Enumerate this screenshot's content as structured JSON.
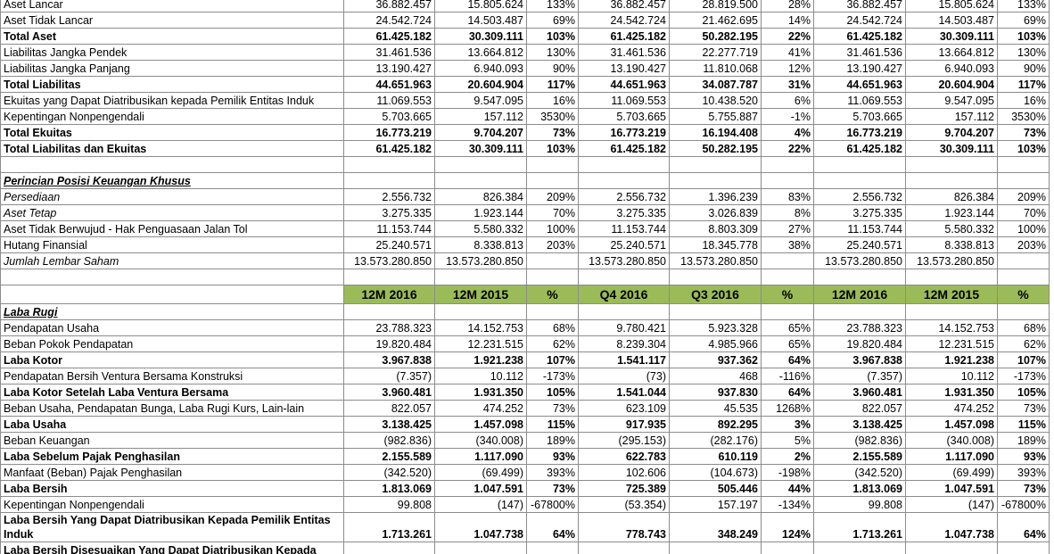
{
  "rows": [
    {
      "label": "Aset Lancar",
      "cells": [
        "36.882.457",
        "15.805.624",
        "133%",
        "36.882.457",
        "28.819.500",
        "28%",
        "36.882.457",
        "15.805.624",
        "133%"
      ]
    },
    {
      "label": "Aset Tidak Lancar",
      "cells": [
        "24.542.724",
        "14.503.487",
        "69%",
        "24.542.724",
        "21.462.695",
        "14%",
        "24.542.724",
        "14.503.487",
        "69%"
      ]
    },
    {
      "label": "Total Aset",
      "style": "bold",
      "cells": [
        "61.425.182",
        "30.309.111",
        "103%",
        "61.425.182",
        "50.282.195",
        "22%",
        "61.425.182",
        "30.309.111",
        "103%"
      ]
    },
    {
      "label": "Liabilitas Jangka Pendek",
      "cells": [
        "31.461.536",
        "13.664.812",
        "130%",
        "31.461.536",
        "22.277.719",
        "41%",
        "31.461.536",
        "13.664.812",
        "130%"
      ]
    },
    {
      "label": "Liabilitas Jangka Panjang",
      "cells": [
        "13.190.427",
        "6.940.093",
        "90%",
        "13.190.427",
        "11.810.068",
        "12%",
        "13.190.427",
        "6.940.093",
        "90%"
      ]
    },
    {
      "label": "Total Liabilitas",
      "style": "bold",
      "cells": [
        "44.651.963",
        "20.604.904",
        "117%",
        "44.651.963",
        "34.087.787",
        "31%",
        "44.651.963",
        "20.604.904",
        "117%"
      ]
    },
    {
      "label": "Ekuitas yang Dapat Diatribusikan kepada Pemilik Entitas Induk",
      "cells": [
        "11.069.553",
        "9.547.095",
        "16%",
        "11.069.553",
        "10.438.520",
        "6%",
        "11.069.553",
        "9.547.095",
        "16%"
      ]
    },
    {
      "label": "Kepentingan Nonpengendali",
      "cells": [
        "5.703.665",
        "157.112",
        "3530%",
        "5.703.665",
        "5.755.887",
        "-1%",
        "5.703.665",
        "157.112",
        "3530%"
      ]
    },
    {
      "label": "Total Ekuitas",
      "style": "bold",
      "cells": [
        "16.773.219",
        "9.704.207",
        "73%",
        "16.773.219",
        "16.194.408",
        "4%",
        "16.773.219",
        "9.704.207",
        "73%"
      ]
    },
    {
      "label": "Total Liabilitas dan Ekuitas",
      "style": "bold",
      "cells": [
        "61.425.182",
        "30.309.111",
        "103%",
        "61.425.182",
        "50.282.195",
        "22%",
        "61.425.182",
        "30.309.111",
        "103%"
      ]
    },
    {},
    {
      "label": "Perincian Posisi Keuangan Khusus",
      "style": "section"
    },
    {
      "label": "Persediaan",
      "style": "italic",
      "cells": [
        "2.556.732",
        "826.384",
        "209%",
        "2.556.732",
        "1.396.239",
        "83%",
        "2.556.732",
        "826.384",
        "209%"
      ]
    },
    {
      "label": "Aset Tetap",
      "style": "italic",
      "cells": [
        "3.275.335",
        "1.923.144",
        "70%",
        "3.275.335",
        "3.026.839",
        "8%",
        "3.275.335",
        "1.923.144",
        "70%"
      ]
    },
    {
      "label": "Aset Tidak Berwujud - Hak Penguasaan Jalan Tol",
      "cells": [
        "11.153.744",
        "5.580.332",
        "100%",
        "11.153.744",
        "8.803.309",
        "27%",
        "11.153.744",
        "5.580.332",
        "100%"
      ]
    },
    {
      "label": "Hutang Finansial",
      "cells": [
        "25.240.571",
        "8.338.813",
        "203%",
        "25.240.571",
        "18.345.778",
        "38%",
        "25.240.571",
        "8.338.813",
        "203%"
      ]
    },
    {
      "label": "Jumlah Lembar Saham",
      "style": "italic",
      "cells": [
        "13.573.280.850",
        "13.573.280.850",
        null,
        "13.573.280.850",
        "13.573.280.850",
        null,
        "13.573.280.850",
        "13.573.280.850",
        null
      ]
    },
    {},
    {
      "style": "header",
      "cells": [
        "12M 2016",
        "12M 2015",
        "%",
        "Q4 2016",
        "Q3 2016",
        "%",
        "12M 2016",
        "12M 2015",
        "%"
      ]
    },
    {
      "label": "Laba Rugi",
      "style": "section"
    },
    {
      "label": "Pendapatan Usaha",
      "cells": [
        "23.788.323",
        "14.152.753",
        "68%",
        "9.780.421",
        "5.923.328",
        "65%",
        "23.788.323",
        "14.152.753",
        "68%"
      ]
    },
    {
      "label": "Beban Pokok Pendapatan",
      "cells": [
        "19.820.484",
        "12.231.515",
        "62%",
        "8.239.304",
        "4.985.966",
        "65%",
        "19.820.484",
        "12.231.515",
        "62%"
      ]
    },
    {
      "label": "Laba Kotor",
      "style": "bold",
      "cells": [
        "3.967.838",
        "1.921.238",
        "107%",
        "1.541.117",
        "937.362",
        "64%",
        "3.967.838",
        "1.921.238",
        "107%"
      ]
    },
    {
      "label": "Pendapatan Bersih Ventura Bersama Konstruksi",
      "cells": [
        "(7.357)",
        "10.112",
        "-173%",
        "(73)",
        "468",
        "-116%",
        "(7.357)",
        "10.112",
        "-173%"
      ]
    },
    {
      "label": "Laba Kotor Setelah Laba Ventura Bersama",
      "style": "bold",
      "cells": [
        "3.960.481",
        "1.931.350",
        "105%",
        "1.541.044",
        "937.830",
        "64%",
        "3.960.481",
        "1.931.350",
        "105%"
      ]
    },
    {
      "label": "Beban Usaha, Pendapatan Bunga, Laba Rugi Kurs, Lain-lain",
      "cells": [
        "822.057",
        "474.252",
        "73%",
        "623.109",
        "45.535",
        "1268%",
        "822.057",
        "474.252",
        "73%"
      ]
    },
    {
      "label": "Laba Usaha",
      "style": "bold",
      "cells": [
        "3.138.425",
        "1.457.098",
        "115%",
        "917.935",
        "892.295",
        "3%",
        "3.138.425",
        "1.457.098",
        "115%"
      ]
    },
    {
      "label": "Beban Keuangan",
      "cells": [
        "(982.836)",
        "(340.008)",
        "189%",
        "(295.153)",
        "(282.176)",
        "5%",
        "(982.836)",
        "(340.008)",
        "189%"
      ]
    },
    {
      "label": "Laba Sebelum Pajak Penghasilan",
      "style": "bold",
      "cells": [
        "2.155.589",
        "1.117.090",
        "93%",
        "622.783",
        "610.119",
        "2%",
        "2.155.589",
        "1.117.090",
        "93%"
      ]
    },
    {
      "label": "Manfaat (Beban) Pajak Penghasilan",
      "cells": [
        "(342.520)",
        "(69.499)",
        "393%",
        "102.606",
        "(104.673)",
        "-198%",
        "(342.520)",
        "(69.499)",
        "393%"
      ]
    },
    {
      "label": "Laba Bersih",
      "style": "bold",
      "cells": [
        "1.813.069",
        "1.047.591",
        "73%",
        "725.389",
        "505.446",
        "44%",
        "1.813.069",
        "1.047.591",
        "73%"
      ]
    },
    {
      "label": "Kepentingan Nonpengendali",
      "cells": [
        "99.808",
        "(147)",
        "-67800%",
        "(53.354)",
        "157.197",
        "-134%",
        "99.808",
        "(147)",
        "-67800%"
      ]
    },
    {
      "label": "Laba Bersih Yang Dapat Diatribusikan Kepada Pemilik Entitas Induk",
      "style": "bold",
      "cells": [
        "1.713.261",
        "1.047.738",
        "64%",
        "778.743",
        "348.249",
        "124%",
        "1.713.261",
        "1.047.738",
        "64%"
      ]
    },
    {
      "label": "Laba Bersih Disesuaikan Yang Dapat Diatribusikan Kepada",
      "style": "bold"
    }
  ]
}
